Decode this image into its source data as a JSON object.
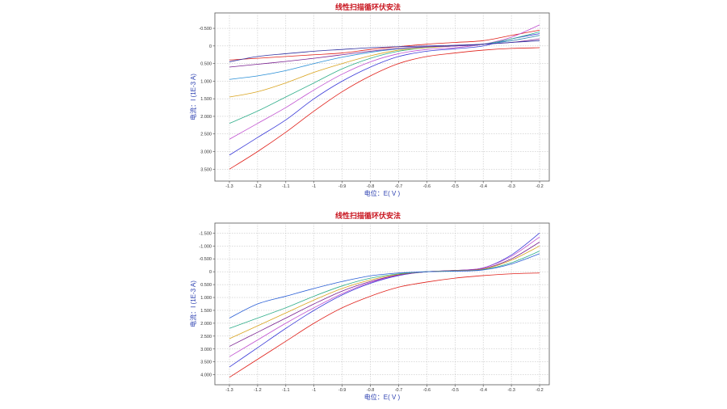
{
  "chart_data": [
    {
      "type": "line",
      "title": "线性扫描循环伏安法",
      "xlabel": "电位：E( V )",
      "ylabel": "电流：I (1E-3 A)",
      "xlim": [
        -1.3,
        -0.2
      ],
      "ylim": [
        -0.8,
        3.7
      ],
      "y_inverted": true,
      "x_ticks": [
        -1.3,
        -1.2,
        -1.1,
        -1.0,
        -0.9,
        -0.8,
        -0.7,
        -0.6,
        -0.5,
        -0.4,
        -0.3,
        -0.2
      ],
      "x_tick_labels": [
        "-1.3",
        "-1.2",
        "-1.1",
        "-1",
        "-0.9",
        "-0.8",
        "-0.7",
        "-0.6",
        "-0.5",
        "-0.4",
        "-0.3",
        "-0.2"
      ],
      "y_ticks": [
        -0.5,
        0,
        0.5,
        1.0,
        1.5,
        2.0,
        2.5,
        3.0,
        3.5
      ],
      "y_tick_labels": [
        "-0.500",
        "0",
        "0.500",
        "1.000",
        "1.500",
        "2.000",
        "2.500",
        "3.000",
        "3.500"
      ],
      "grid": true,
      "series": [
        {
          "color": "#e0201a",
          "x": [
            -1.3,
            -1.2,
            -1.1,
            -1.0,
            -0.9,
            -0.8,
            -0.7,
            -0.6,
            -0.5,
            -0.4,
            -0.3,
            -0.2
          ],
          "y": [
            0.4,
            0.35,
            0.3,
            0.25,
            0.2,
            0.1,
            0.02,
            -0.05,
            -0.1,
            -0.15,
            -0.3,
            -0.45
          ]
        },
        {
          "color": "#e0201a",
          "x": [
            -1.3,
            -1.2,
            -1.1,
            -1.0,
            -0.9,
            -0.8,
            -0.7,
            -0.6,
            -0.5,
            -0.4,
            -0.3,
            -0.2
          ],
          "y": [
            3.5,
            3.0,
            2.45,
            1.85,
            1.3,
            0.85,
            0.5,
            0.3,
            0.2,
            0.12,
            0.07,
            0.05
          ]
        },
        {
          "color": "#3a3ad8",
          "x": [
            -1.3,
            -1.2,
            -1.1,
            -1.0,
            -0.9,
            -0.8,
            -0.7,
            -0.6,
            -0.5,
            -0.4,
            -0.3,
            -0.2
          ],
          "y": [
            3.1,
            2.6,
            2.1,
            1.5,
            1.0,
            0.6,
            0.3,
            0.15,
            0.08,
            0.0,
            -0.2,
            -0.35
          ]
        },
        {
          "color": "#c050d0",
          "x": [
            -1.3,
            -1.2,
            -1.1,
            -1.0,
            -0.9,
            -0.8,
            -0.7,
            -0.6,
            -0.5,
            -0.4,
            -0.3,
            -0.2
          ],
          "y": [
            2.65,
            2.2,
            1.75,
            1.25,
            0.8,
            0.45,
            0.22,
            0.1,
            0.05,
            -0.05,
            -0.25,
            -0.6
          ]
        },
        {
          "color": "#2fae8a",
          "x": [
            -1.3,
            -1.2,
            -1.1,
            -1.0,
            -0.9,
            -0.8,
            -0.7,
            -0.6,
            -0.5,
            -0.4,
            -0.3,
            -0.2
          ],
          "y": [
            2.2,
            1.85,
            1.45,
            1.05,
            0.65,
            0.35,
            0.15,
            0.05,
            0.0,
            -0.05,
            -0.2,
            -0.4
          ]
        },
        {
          "color": "#d9a420",
          "x": [
            -1.3,
            -1.2,
            -1.1,
            -1.0,
            -0.9,
            -0.8,
            -0.7,
            -0.6,
            -0.5,
            -0.4,
            -0.3,
            -0.2
          ],
          "y": [
            1.45,
            1.3,
            1.05,
            0.75,
            0.5,
            0.28,
            0.12,
            0.05,
            0.0,
            -0.05,
            -0.15,
            -0.3
          ]
        },
        {
          "color": "#2a8fd6",
          "x": [
            -1.3,
            -1.2,
            -1.1,
            -1.0,
            -0.9,
            -0.8,
            -0.7,
            -0.6,
            -0.5,
            -0.4,
            -0.3,
            -0.2
          ],
          "y": [
            0.95,
            0.85,
            0.7,
            0.5,
            0.32,
            0.18,
            0.08,
            0.03,
            0.0,
            -0.05,
            -0.15,
            -0.3
          ]
        },
        {
          "color": "#7a2090",
          "x": [
            -1.3,
            -1.2,
            -1.1,
            -1.0,
            -0.9,
            -0.8,
            -0.7,
            -0.6,
            -0.5,
            -0.4,
            -0.3,
            -0.2
          ],
          "y": [
            0.6,
            0.52,
            0.44,
            0.35,
            0.25,
            0.15,
            0.07,
            0.02,
            0.0,
            -0.05,
            -0.1,
            -0.2
          ]
        },
        {
          "color": "#3030a0",
          "x": [
            -1.3,
            -1.2,
            -1.1,
            -1.0,
            -0.9,
            -0.8,
            -0.7,
            -0.6,
            -0.5,
            -0.4,
            -0.3,
            -0.2
          ],
          "y": [
            0.45,
            0.3,
            0.22,
            0.15,
            0.1,
            0.05,
            0.02,
            0.0,
            -0.02,
            -0.05,
            -0.1,
            -0.15
          ]
        }
      ]
    },
    {
      "type": "line",
      "title": "线性扫描循环伏安法",
      "xlabel": "电位：E( V )",
      "ylabel": "电流：I (1E-3 A)",
      "xlim": [
        -1.3,
        -0.2
      ],
      "ylim": [
        -1.7,
        4.2
      ],
      "y_inverted": true,
      "x_ticks": [
        -1.3,
        -1.2,
        -1.1,
        -1.0,
        -0.9,
        -0.8,
        -0.7,
        -0.6,
        -0.5,
        -0.4,
        -0.3,
        -0.2
      ],
      "x_tick_labels": [
        "-1.3",
        "-1.2",
        "-1.1",
        "-1",
        "-0.9",
        "-0.8",
        "-0.7",
        "-0.6",
        "-0.5",
        "-0.4",
        "-0.3",
        "-0.2"
      ],
      "y_ticks": [
        -1.5,
        -1.0,
        -0.5,
        0,
        0.5,
        1.0,
        1.5,
        2.0,
        2.5,
        3.0,
        3.5,
        4.0
      ],
      "y_tick_labels": [
        "-1.500",
        "-1.000",
        "-0.500",
        "0",
        "0.500",
        "1.000",
        "1.500",
        "2.000",
        "2.500",
        "3.000",
        "3.500",
        "4.000"
      ],
      "grid": true,
      "series": [
        {
          "color": "#e0201a",
          "x": [
            -1.3,
            -1.2,
            -1.1,
            -1.0,
            -0.9,
            -0.8,
            -0.7,
            -0.6,
            -0.5,
            -0.4,
            -0.3,
            -0.2
          ],
          "y": [
            4.1,
            3.4,
            2.7,
            2.0,
            1.4,
            0.95,
            0.6,
            0.4,
            0.25,
            0.15,
            0.08,
            0.05
          ]
        },
        {
          "color": "#3a3ad8",
          "x": [
            -1.3,
            -1.2,
            -1.1,
            -1.0,
            -0.9,
            -0.8,
            -0.7,
            -0.6,
            -0.5,
            -0.4,
            -0.3,
            -0.2
          ],
          "y": [
            3.7,
            2.95,
            2.2,
            1.5,
            0.9,
            0.45,
            0.15,
            0.0,
            -0.05,
            -0.15,
            -0.65,
            -1.5
          ]
        },
        {
          "color": "#c050d0",
          "x": [
            -1.3,
            -1.2,
            -1.1,
            -1.0,
            -0.9,
            -0.8,
            -0.7,
            -0.6,
            -0.5,
            -0.4,
            -0.3,
            -0.2
          ],
          "y": [
            3.3,
            2.65,
            2.0,
            1.4,
            0.85,
            0.42,
            0.13,
            0.0,
            -0.05,
            -0.15,
            -0.6,
            -1.35
          ]
        },
        {
          "color": "#7a2090",
          "x": [
            -1.3,
            -1.2,
            -1.1,
            -1.0,
            -0.9,
            -0.8,
            -0.7,
            -0.6,
            -0.5,
            -0.4,
            -0.3,
            -0.2
          ],
          "y": [
            2.9,
            2.35,
            1.8,
            1.25,
            0.75,
            0.38,
            0.12,
            0.0,
            -0.05,
            -0.12,
            -0.5,
            -1.15
          ]
        },
        {
          "color": "#d9a420",
          "x": [
            -1.3,
            -1.2,
            -1.1,
            -1.0,
            -0.9,
            -0.8,
            -0.7,
            -0.6,
            -0.5,
            -0.4,
            -0.3,
            -0.2
          ],
          "y": [
            2.6,
            2.1,
            1.6,
            1.1,
            0.65,
            0.32,
            0.1,
            0.0,
            -0.04,
            -0.1,
            -0.45,
            -1.0
          ]
        },
        {
          "color": "#2fae8a",
          "x": [
            -1.3,
            -1.2,
            -1.1,
            -1.0,
            -0.9,
            -0.8,
            -0.7,
            -0.6,
            -0.5,
            -0.4,
            -0.3,
            -0.2
          ],
          "y": [
            2.2,
            1.8,
            1.4,
            0.95,
            0.55,
            0.25,
            0.08,
            0.0,
            -0.03,
            -0.08,
            -0.35,
            -0.8
          ]
        },
        {
          "color": "#2a5fd6",
          "x": [
            -1.3,
            -1.2,
            -1.1,
            -1.0,
            -0.9,
            -0.8,
            -0.7,
            -0.6,
            -0.5,
            -0.4,
            -0.3,
            -0.2
          ],
          "y": [
            1.8,
            1.25,
            0.95,
            0.65,
            0.38,
            0.16,
            0.05,
            0.0,
            -0.02,
            -0.07,
            -0.3,
            -0.7
          ]
        }
      ]
    }
  ]
}
